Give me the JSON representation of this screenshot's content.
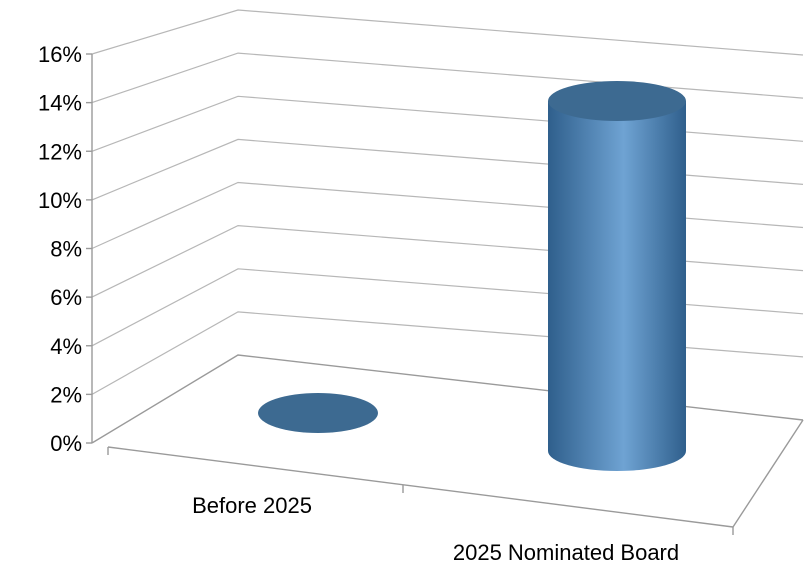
{
  "chart_data": {
    "type": "bar",
    "style": "3d-cylinder",
    "categories": [
      "Before 2025",
      "2025 Nominated Board"
    ],
    "series": [
      {
        "values": [
          0,
          14
        ]
      }
    ],
    "y_ticks": [
      "0%",
      "2%",
      "4%",
      "6%",
      "8%",
      "10%",
      "12%",
      "14%",
      "16%"
    ],
    "ylim": [
      0,
      16
    ],
    "y_unit": "%",
    "grid": true,
    "legend": "none",
    "colors": {
      "bar_top": "#3d6a91",
      "bar_body_dark": "#2f5f8c",
      "bar_body_light": "#6fa3d3",
      "gridline": "#b7b7b7",
      "axis": "#9a9a9a"
    }
  }
}
